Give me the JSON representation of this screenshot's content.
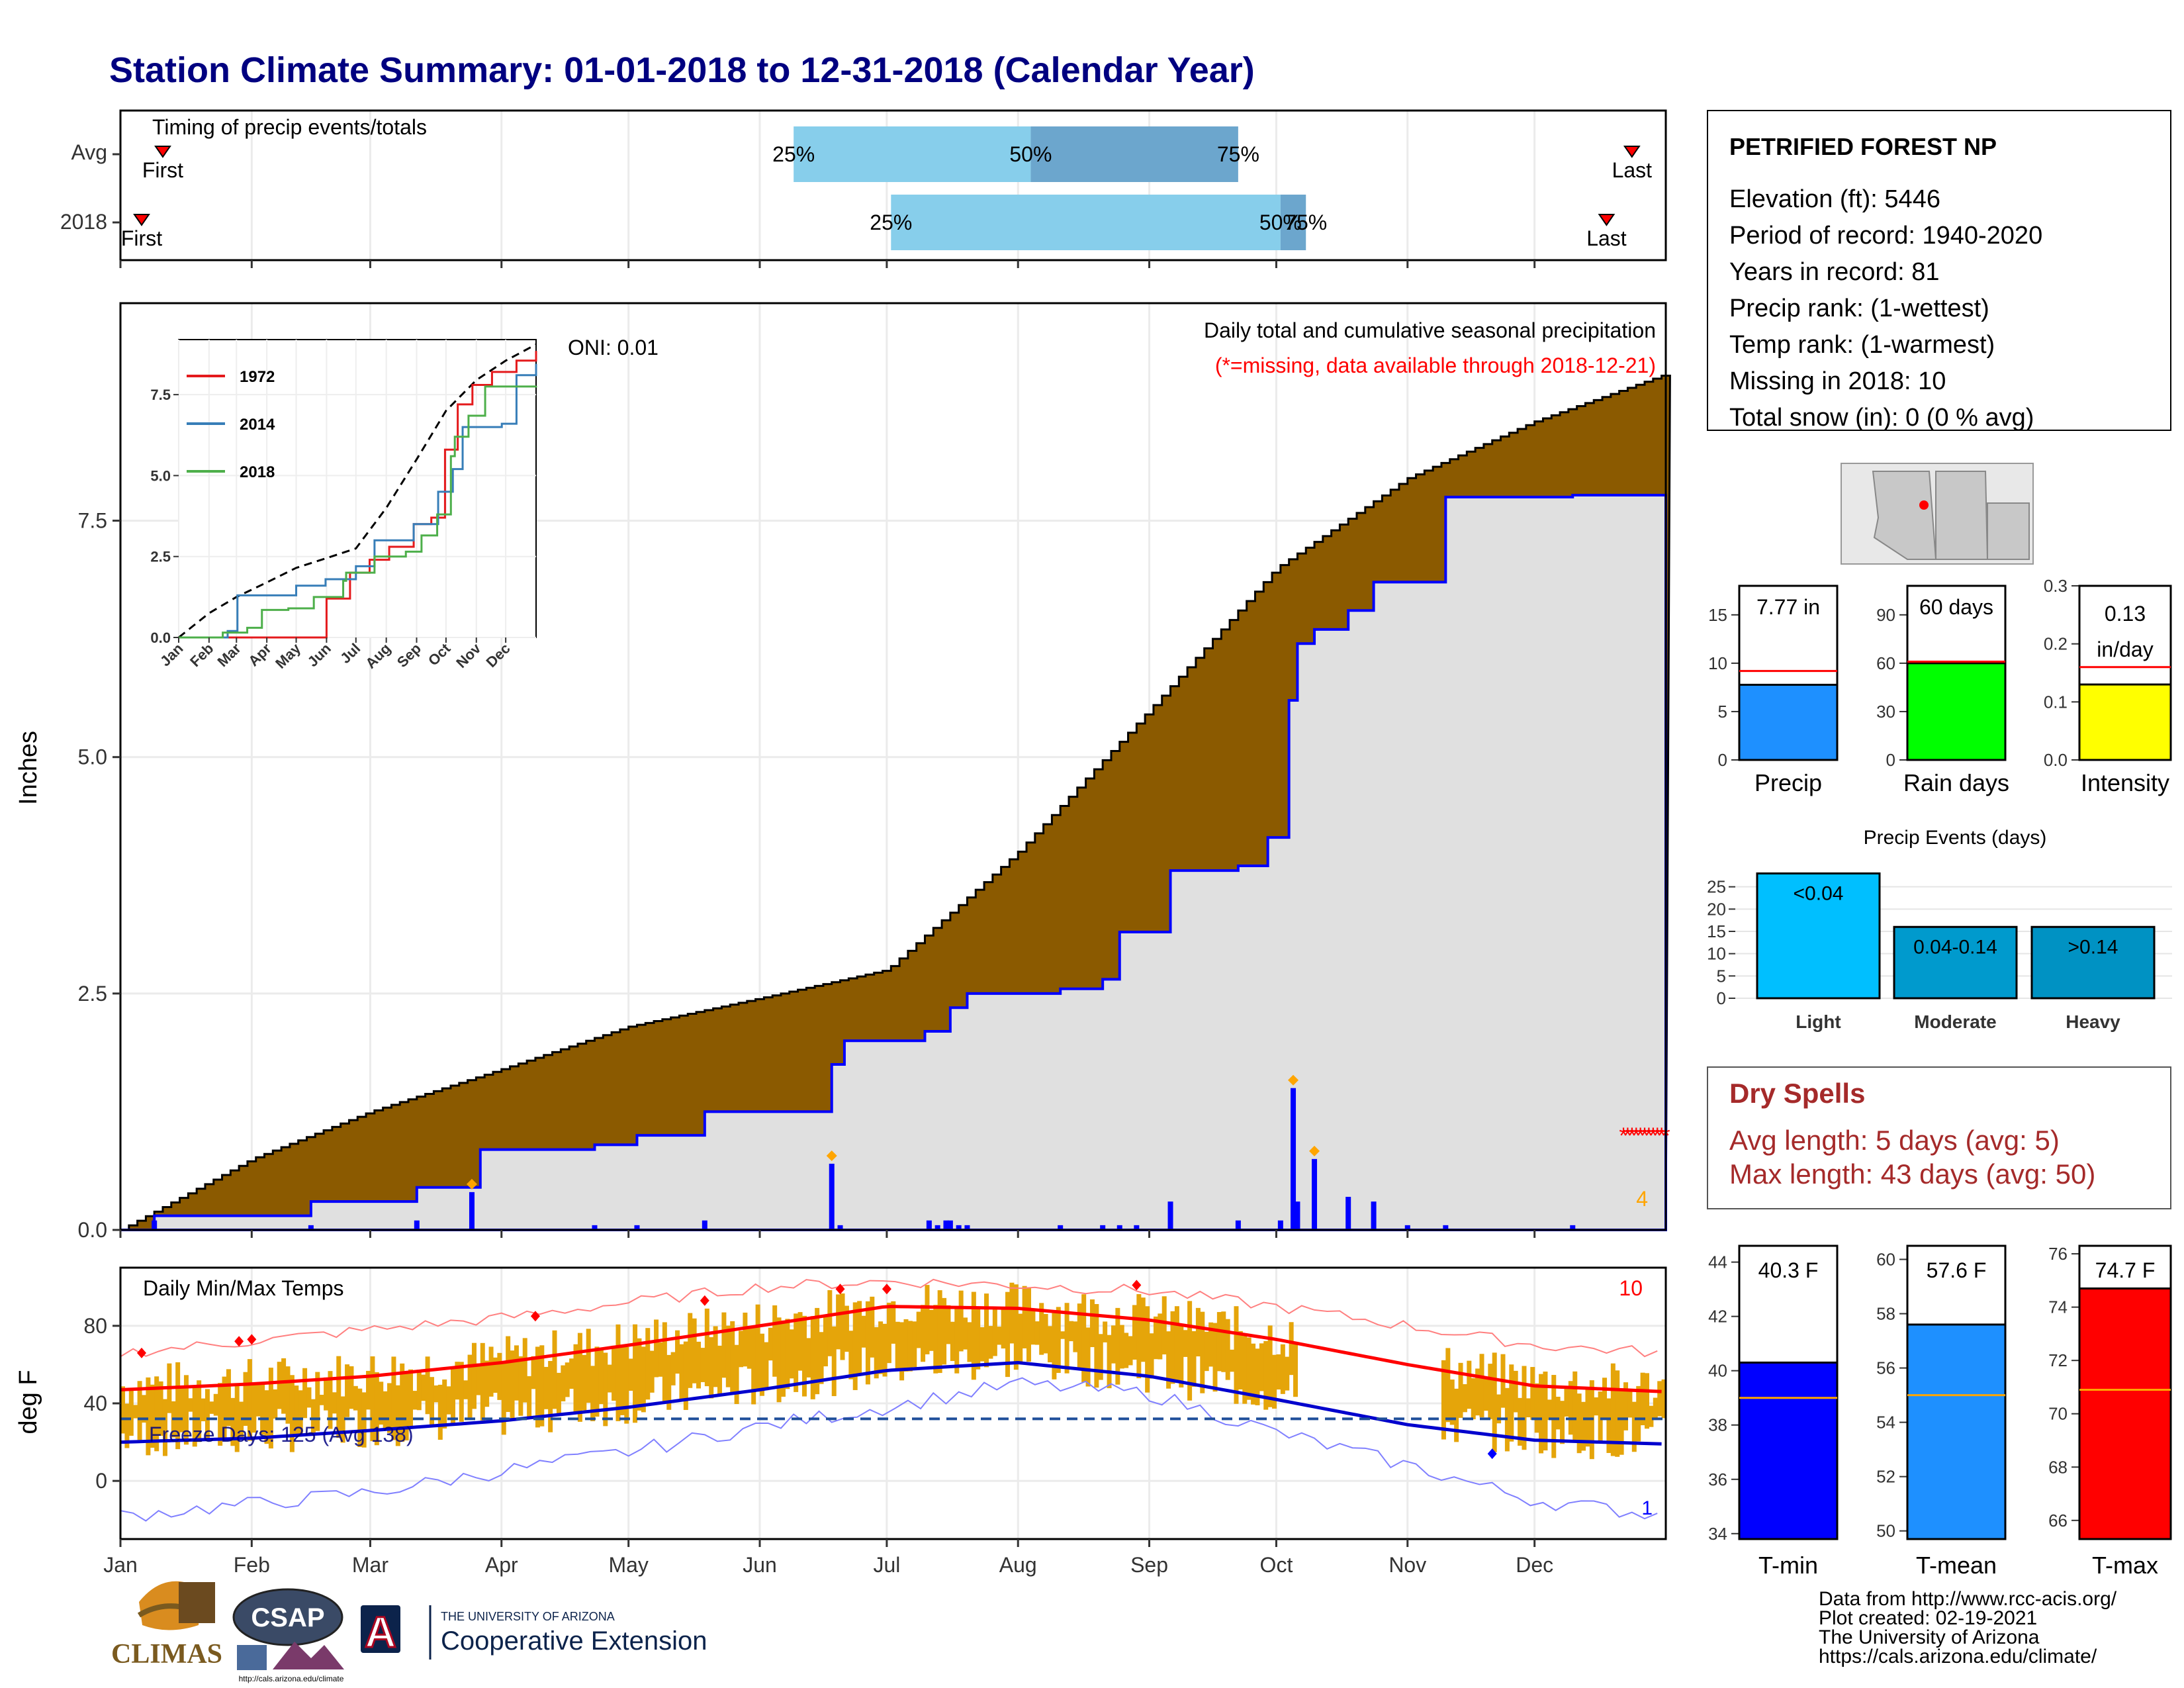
{
  "title": "Station Climate Summary: 01-01-2018 to 12-31-2018 (Calendar Year)",
  "colors": {
    "title": "#000080",
    "precip_brown": "#8B5A00",
    "missing_red": "#FF0000",
    "bar_blue": "#0000FF",
    "temp_orange": "#E5A50A",
    "light_blue": "#87CEEB",
    "mid_blue": "#6CA6CD",
    "gray_fill": "#E0E0E0",
    "dry_red": "#A52A2A"
  },
  "timing": {
    "title": "Timing of precip events/totals",
    "rows": [
      {
        "label": "Avg",
        "first_label": "First",
        "last_label": "Last",
        "first_day": 10,
        "last_day": 357,
        "p25_label": "25%",
        "p50_label": "50%",
        "p75_label": "75%",
        "p25_day": 159,
        "p50_day": 215,
        "p75_day": 264
      },
      {
        "label": "2018",
        "first_label": "First",
        "last_label": "Last",
        "first_day": 5,
        "last_day": 351,
        "p25_label": "25%",
        "p50_label": "50%",
        "p75_label": "75%",
        "p25_day": 182,
        "p50_day": 274,
        "p75_day": 280
      }
    ]
  },
  "precip_panel": {
    "annotation_title": "Daily total and cumulative seasonal precipitation",
    "annotation_missing": "(*=missing, data available through 2018-12-21)",
    "ylabel": "Inches",
    "y_ticks": [
      "0.0",
      "2.5",
      "5.0",
      "7.5"
    ],
    "missing_count": "4",
    "oni": "ONI: 0.01"
  },
  "inset": {
    "y_ticks": [
      "0.0",
      "2.5",
      "5.0",
      "7.5"
    ],
    "x_ticks": [
      "Jan",
      "Feb",
      "Mar",
      "Apr",
      "May",
      "Jun",
      "Jul",
      "Aug",
      "Sep",
      "Oct",
      "Nov",
      "Dec"
    ],
    "legend": [
      {
        "name": "1972",
        "color": "#E41A1C"
      },
      {
        "name": "2014",
        "color": "#377EB8"
      },
      {
        "name": "2018",
        "color": "#4DAF4A"
      }
    ]
  },
  "temp_panel": {
    "title": "Daily Min/Max Temps",
    "ylabel": "deg F",
    "y_ticks": [
      "0",
      "40",
      "80"
    ],
    "freeze_text": "Freeze Days: 125 (Avg 138)",
    "missing_count": "10",
    "corner_count": "1"
  },
  "months": [
    "Jan",
    "Feb",
    "Mar",
    "Apr",
    "May",
    "Jun",
    "Jul",
    "Aug",
    "Sep",
    "Oct",
    "Nov",
    "Dec"
  ],
  "station": {
    "name": "PETRIFIED FOREST NP",
    "lines": [
      "Elevation (ft): 5446",
      "Period of record: 1940-2020",
      "Years in record: 81",
      "Precip rank:  (1-wettest)",
      "Temp rank:  (1-warmest)",
      "Missing in 2018: 10",
      "Total snow (in): 0 (0 % avg)"
    ]
  },
  "stat_bars": [
    {
      "label": "Precip",
      "value_text": "7.77 in",
      "value": 7.77,
      "avg": 9.2,
      "ymax": 18,
      "ticks": [
        "0",
        "5",
        "10",
        "15"
      ],
      "tick_vals": [
        0,
        5,
        10,
        15
      ],
      "color": "#1E90FF"
    },
    {
      "label": "Rain days",
      "value_text": "60 days",
      "value": 60,
      "avg": 61,
      "ymax": 108,
      "ticks": [
        "0",
        "30",
        "60",
        "90"
      ],
      "tick_vals": [
        0,
        30,
        60,
        90
      ],
      "color": "#00FF00"
    },
    {
      "label": "Intensity",
      "value_text": "0.13 in/day",
      "value": 0.13,
      "avg": 0.16,
      "ymax": 0.3,
      "ticks": [
        "0.0",
        "0.1",
        "0.2",
        "0.3"
      ],
      "tick_vals": [
        0,
        0.1,
        0.2,
        0.3
      ],
      "color": "#FFFF00"
    }
  ],
  "precip_events": {
    "title": "Precip Events (days)",
    "ticks": [
      "0",
      "5",
      "10",
      "15",
      "20",
      "25"
    ],
    "categories": [
      "Light",
      "Moderate",
      "Heavy"
    ],
    "bar_labels": [
      "<0.04",
      "0.04-0.14",
      ">0.14"
    ],
    "values": [
      28,
      16,
      16
    ],
    "colors": [
      "#00BFFF",
      "#009ACD",
      "#0092C3"
    ]
  },
  "dry_spells": {
    "title": "Dry Spells",
    "avg_line": "Avg length: 5 days (avg: 5)",
    "max_line": "Max length: 43 days (avg: 50)"
  },
  "temp_bars": [
    {
      "label": "T-min",
      "value_text": "40.3 F",
      "value": 40.3,
      "avg": 39.0,
      "ymin": 33.8,
      "ymax": 44.6,
      "ticks": [
        "34",
        "36",
        "38",
        "40",
        "42",
        "44"
      ],
      "tick_vals": [
        34,
        36,
        38,
        40,
        42,
        44
      ],
      "color": "#0000FF"
    },
    {
      "label": "T-mean",
      "value_text": "57.6 F",
      "value": 57.6,
      "avg": 55.0,
      "ymin": 49.7,
      "ymax": 60.5,
      "ticks": [
        "50",
        "52",
        "54",
        "56",
        "58",
        "60"
      ],
      "tick_vals": [
        50,
        52,
        54,
        56,
        58,
        60
      ],
      "color": "#1E90FF"
    },
    {
      "label": "T-max",
      "value_text": "74.7 F",
      "value": 74.7,
      "avg": 70.9,
      "ymin": 65.3,
      "ymax": 76.3,
      "ticks": [
        "66",
        "68",
        "70",
        "72",
        "74",
        "76"
      ],
      "tick_vals": [
        66,
        68,
        70,
        72,
        74,
        76
      ],
      "color": "#FF0000"
    }
  ],
  "credits": [
    "Data from http://www.rcc-acis.org/",
    "Plot created: 02-19-2021",
    "The University of Arizona",
    "https://cals.arizona.edu/climate/"
  ],
  "logos": {
    "climas": "CLIMAS",
    "csap": "CSAP",
    "csap_url": "http://cals.arizona.edu/climate",
    "ua_small": "THE UNIVERSITY OF ARIZONA",
    "ua_big": "Cooperative Extension",
    "ua_letter": "A"
  },
  "chart_data": [
    {
      "type": "line",
      "title": "Daily total and cumulative seasonal precipitation",
      "ylabel": "Inches",
      "ylim": [
        0,
        9.8
      ],
      "series": [
        {
          "name": "Average cumulative",
          "x": [
            0,
            31,
            59,
            90,
            120,
            151,
            181,
            212,
            243,
            273,
            304,
            334,
            365
          ],
          "values": [
            0,
            0.75,
            1.25,
            1.7,
            2.15,
            2.45,
            2.75,
            4.0,
            5.5,
            7.0,
            7.95,
            8.55,
            9.05
          ]
        },
        {
          "name": "2018 cumulative",
          "x": [
            0,
            8,
            8,
            45,
            45,
            70,
            70,
            85,
            85,
            112,
            112,
            122,
            122,
            138,
            138,
            168,
            168,
            171,
            171,
            190,
            190,
            196,
            196,
            200,
            200,
            222,
            222,
            232,
            232,
            236,
            236,
            248,
            248,
            264,
            264,
            271,
            271,
            276,
            276,
            278,
            278,
            282,
            282,
            290,
            290,
            296,
            296,
            313,
            313,
            343,
            343,
            365
          ],
          "values": [
            0,
            0,
            0.15,
            0.15,
            0.3,
            0.3,
            0.45,
            0.45,
            0.85,
            0.85,
            0.9,
            0.9,
            1.0,
            1.0,
            1.25,
            1.25,
            1.75,
            1.75,
            2.0,
            2.0,
            2.1,
            2.1,
            2.35,
            2.35,
            2.5,
            2.5,
            2.55,
            2.55,
            2.65,
            2.65,
            3.15,
            3.15,
            3.8,
            3.8,
            3.85,
            3.85,
            4.15,
            4.15,
            5.6,
            5.6,
            6.2,
            6.2,
            6.35,
            6.35,
            6.55,
            6.55,
            6.85,
            6.85,
            7.75,
            7.75,
            7.77,
            7.77
          ]
        },
        {
          "name": "Daily precip",
          "x": [
            8,
            45,
            70,
            83,
            112,
            122,
            138,
            168,
            170,
            191,
            193,
            195,
            196,
            198,
            200,
            222,
            232,
            236,
            240,
            248,
            264,
            274,
            277,
            278,
            282,
            290,
            296,
            304,
            313,
            343
          ],
          "values": [
            0.1,
            0.05,
            0.1,
            0.4,
            0.05,
            0.05,
            0.1,
            0.7,
            0.05,
            0.1,
            0.05,
            0.1,
            0.1,
            0.05,
            0.05,
            0.05,
            0.05,
            0.05,
            0.05,
            0.3,
            0.1,
            0.1,
            1.5,
            0.3,
            0.75,
            0.35,
            0.3,
            0.05,
            0.05,
            0.05
          ]
        }
      ]
    },
    {
      "type": "line",
      "title": "",
      "ylim": [
        0,
        9.2
      ],
      "x_categories": [
        "Jan",
        "Feb",
        "Mar",
        "Apr",
        "May",
        "Jun",
        "Jul",
        "Aug",
        "Sep",
        "Oct",
        "Nov",
        "Dec"
      ],
      "series": [
        {
          "name": "",
          "x": [
            0,
            31,
            59,
            90,
            120,
            151,
            181,
            212,
            243,
            273,
            304,
            334,
            365
          ],
          "values": [
            0,
            0.75,
            1.25,
            1.7,
            2.15,
            2.45,
            2.75,
            4.0,
            5.5,
            7.0,
            7.95,
            8.55,
            9.05
          ]
        },
        {
          "name": "1972",
          "x": [
            0,
            151,
            151,
            175,
            195,
            215,
            240,
            258,
            272,
            285,
            300,
            320,
            345,
            365
          ],
          "values": [
            0,
            0,
            1.2,
            2.0,
            2.4,
            2.8,
            3.5,
            3.7,
            5.8,
            7.2,
            7.8,
            8.2,
            8.55,
            8.85
          ]
        },
        {
          "name": "2014",
          "x": [
            0,
            50,
            60,
            120,
            150,
            181,
            200,
            240,
            265,
            280,
            290,
            330,
            345,
            365
          ],
          "values": [
            0,
            0.2,
            1.3,
            1.6,
            1.8,
            2.2,
            3.0,
            3.5,
            4.5,
            5.2,
            6.5,
            6.6,
            8.1,
            8.45
          ]
        },
        {
          "name": "2018",
          "x": [
            0,
            45,
            70,
            85,
            112,
            138,
            168,
            171,
            200,
            232,
            248,
            264,
            278,
            282,
            296,
            313,
            365
          ],
          "values": [
            0,
            0.15,
            0.3,
            0.85,
            0.9,
            1.25,
            1.75,
            2.0,
            2.5,
            2.65,
            3.15,
            3.8,
            5.6,
            6.2,
            6.85,
            7.75,
            7.77
          ]
        }
      ]
    },
    {
      "type": "line",
      "title": "Daily Min/Max Temps",
      "ylabel": "deg F",
      "ylim": [
        -30,
        110
      ],
      "series": [
        {
          "name": "",
          "x": [
            0,
            31,
            59,
            90,
            120,
            151,
            181,
            212,
            243,
            273,
            304,
            334,
            365
          ],
          "values": [
            47,
            50,
            54,
            61,
            70,
            80,
            90,
            89,
            83,
            73,
            60,
            49,
            46
          ]
        },
        {
          "name": "",
          "x": [
            0,
            31,
            59,
            90,
            120,
            151,
            181,
            212,
            243,
            273,
            304,
            334,
            365
          ],
          "values": [
            20,
            22,
            26,
            31,
            38,
            47,
            57,
            61,
            54,
            42,
            29,
            21,
            19
          ]
        },
        {
          "name": "",
          "x": [
            0,
            31,
            59,
            90,
            120,
            151,
            181,
            212,
            243,
            273,
            304,
            334,
            365
          ],
          "values": [
            66,
            72,
            78,
            84,
            92,
            100,
            103,
            101,
            98,
            90,
            80,
            70,
            66
          ]
        },
        {
          "name": "",
          "x": [
            0,
            31,
            59,
            90,
            120,
            151,
            181,
            212,
            243,
            273,
            304,
            334,
            365
          ],
          "values": [
            -18,
            -12,
            -6,
            5,
            15,
            28,
            38,
            50,
            45,
            25,
            8,
            -10,
            -18
          ]
        }
      ],
      "freeze_line": 32
    },
    {
      "type": "bar",
      "categories": [
        "Precip"
      ],
      "values": [
        7.77
      ],
      "ylim": [
        0,
        18
      ]
    },
    {
      "type": "bar",
      "categories": [
        "Rain days"
      ],
      "values": [
        60
      ],
      "ylim": [
        0,
        108
      ]
    },
    {
      "type": "bar",
      "categories": [
        "Intensity"
      ],
      "values": [
        0.13
      ],
      "ylim": [
        0,
        0.3
      ]
    },
    {
      "type": "bar",
      "title": "Precip Events (days)",
      "categories": [
        "Light",
        "Moderate",
        "Heavy"
      ],
      "values": [
        28,
        16,
        16
      ],
      "ylim": [
        0,
        30
      ]
    },
    {
      "type": "bar",
      "categories": [
        "T-min"
      ],
      "values": [
        40.3
      ],
      "ylim": [
        33.8,
        44.6
      ]
    },
    {
      "type": "bar",
      "categories": [
        "T-mean"
      ],
      "values": [
        57.6
      ],
      "ylim": [
        49.7,
        60.5
      ]
    },
    {
      "type": "bar",
      "categories": [
        "T-max"
      ],
      "values": [
        74.7
      ],
      "ylim": [
        65.3,
        76.3
      ]
    }
  ]
}
